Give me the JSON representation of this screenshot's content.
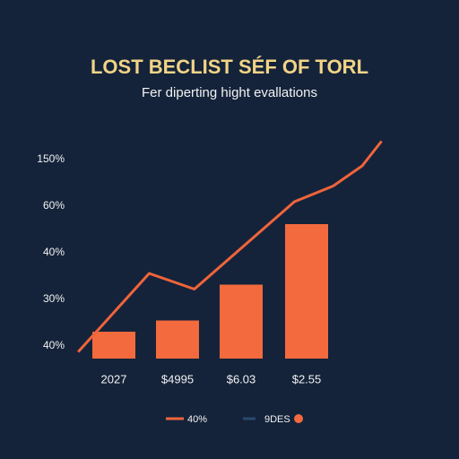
{
  "chart_data": {
    "type": "bar",
    "title": "LOST BECLIST SÉF OF TORL",
    "subtitle": "Fer diperting hight evallations",
    "y_axis_labels": [
      "150%",
      "60%",
      "40%",
      "30%",
      "40%"
    ],
    "categories": [
      "2027",
      "$4995",
      "$6.03",
      "$2.55"
    ],
    "ylim": [
      0,
      100
    ],
    "xlim": [
      0,
      100
    ],
    "series": [
      {
        "name": "40%",
        "type": "line",
        "color": "#f0643a",
        "x": [
          2,
          24,
          38,
          69,
          81,
          90,
          96
        ],
        "values": [
          3,
          38,
          31,
          70,
          77,
          86,
          97
        ]
      },
      {
        "name": "9DES",
        "type": "bar",
        "color": "#f26a3d",
        "values": [
          12,
          17,
          33,
          60
        ]
      }
    ]
  }
}
